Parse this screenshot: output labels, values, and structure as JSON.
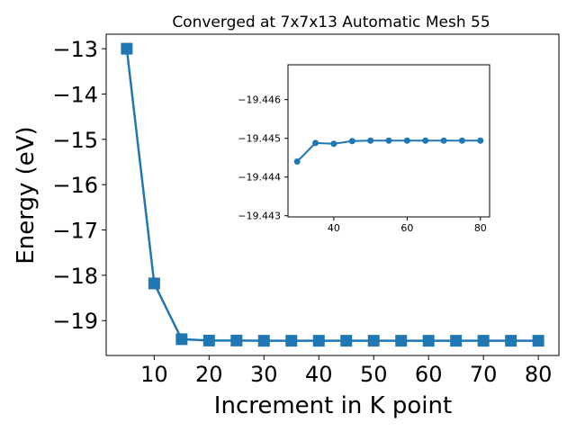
{
  "chart_data": [
    {
      "type": "line",
      "title": "Converged at 7x7x13 Automatic Mesh 55",
      "xlabel": "Increment in K point",
      "ylabel": "Energy (eV)",
      "marker": "square",
      "color": "#1f77b4",
      "x": [
        5,
        10,
        15,
        20,
        25,
        30,
        35,
        40,
        45,
        50,
        55,
        60,
        65,
        70,
        75,
        80
      ],
      "y": [
        -13.0,
        -18.18,
        -19.41,
        -19.44,
        -19.44,
        -19.445,
        -19.445,
        -19.445,
        -19.445,
        -19.445,
        -19.445,
        -19.445,
        -19.445,
        -19.445,
        -19.445,
        -19.445
      ],
      "xlim": [
        1.25,
        83.75
      ],
      "ylim": [
        -19.77,
        -12.68
      ],
      "xticks": [
        10,
        20,
        30,
        40,
        50,
        60,
        70,
        80
      ],
      "yticks": [
        -13,
        -14,
        -15,
        -16,
        -17,
        -18,
        -19
      ],
      "ytick_labels": [
        "−13",
        "−14",
        "−15",
        "−16",
        "−17",
        "−18",
        "−19"
      ]
    },
    {
      "type": "line",
      "inset": true,
      "marker": "circle",
      "color": "#1f77b4",
      "x": [
        30,
        35,
        40,
        45,
        50,
        55,
        60,
        65,
        70,
        75,
        80
      ],
      "y": [
        -19.4444,
        -19.44488,
        -19.44486,
        -19.44493,
        -19.44494,
        -19.44494,
        -19.44494,
        -19.44494,
        -19.44494,
        -19.44494,
        -19.44494
      ],
      "xlim": [
        27.5,
        82.5
      ],
      "ylim": [
        -19.4469,
        -19.44297
      ],
      "y_inverted": true,
      "xticks": [
        40,
        60,
        80
      ],
      "yticks": [
        -19.446,
        -19.445,
        -19.444,
        -19.443
      ],
      "ytick_labels": [
        "−19.446",
        "−19.445",
        "−19.444",
        "−19.443"
      ]
    }
  ]
}
